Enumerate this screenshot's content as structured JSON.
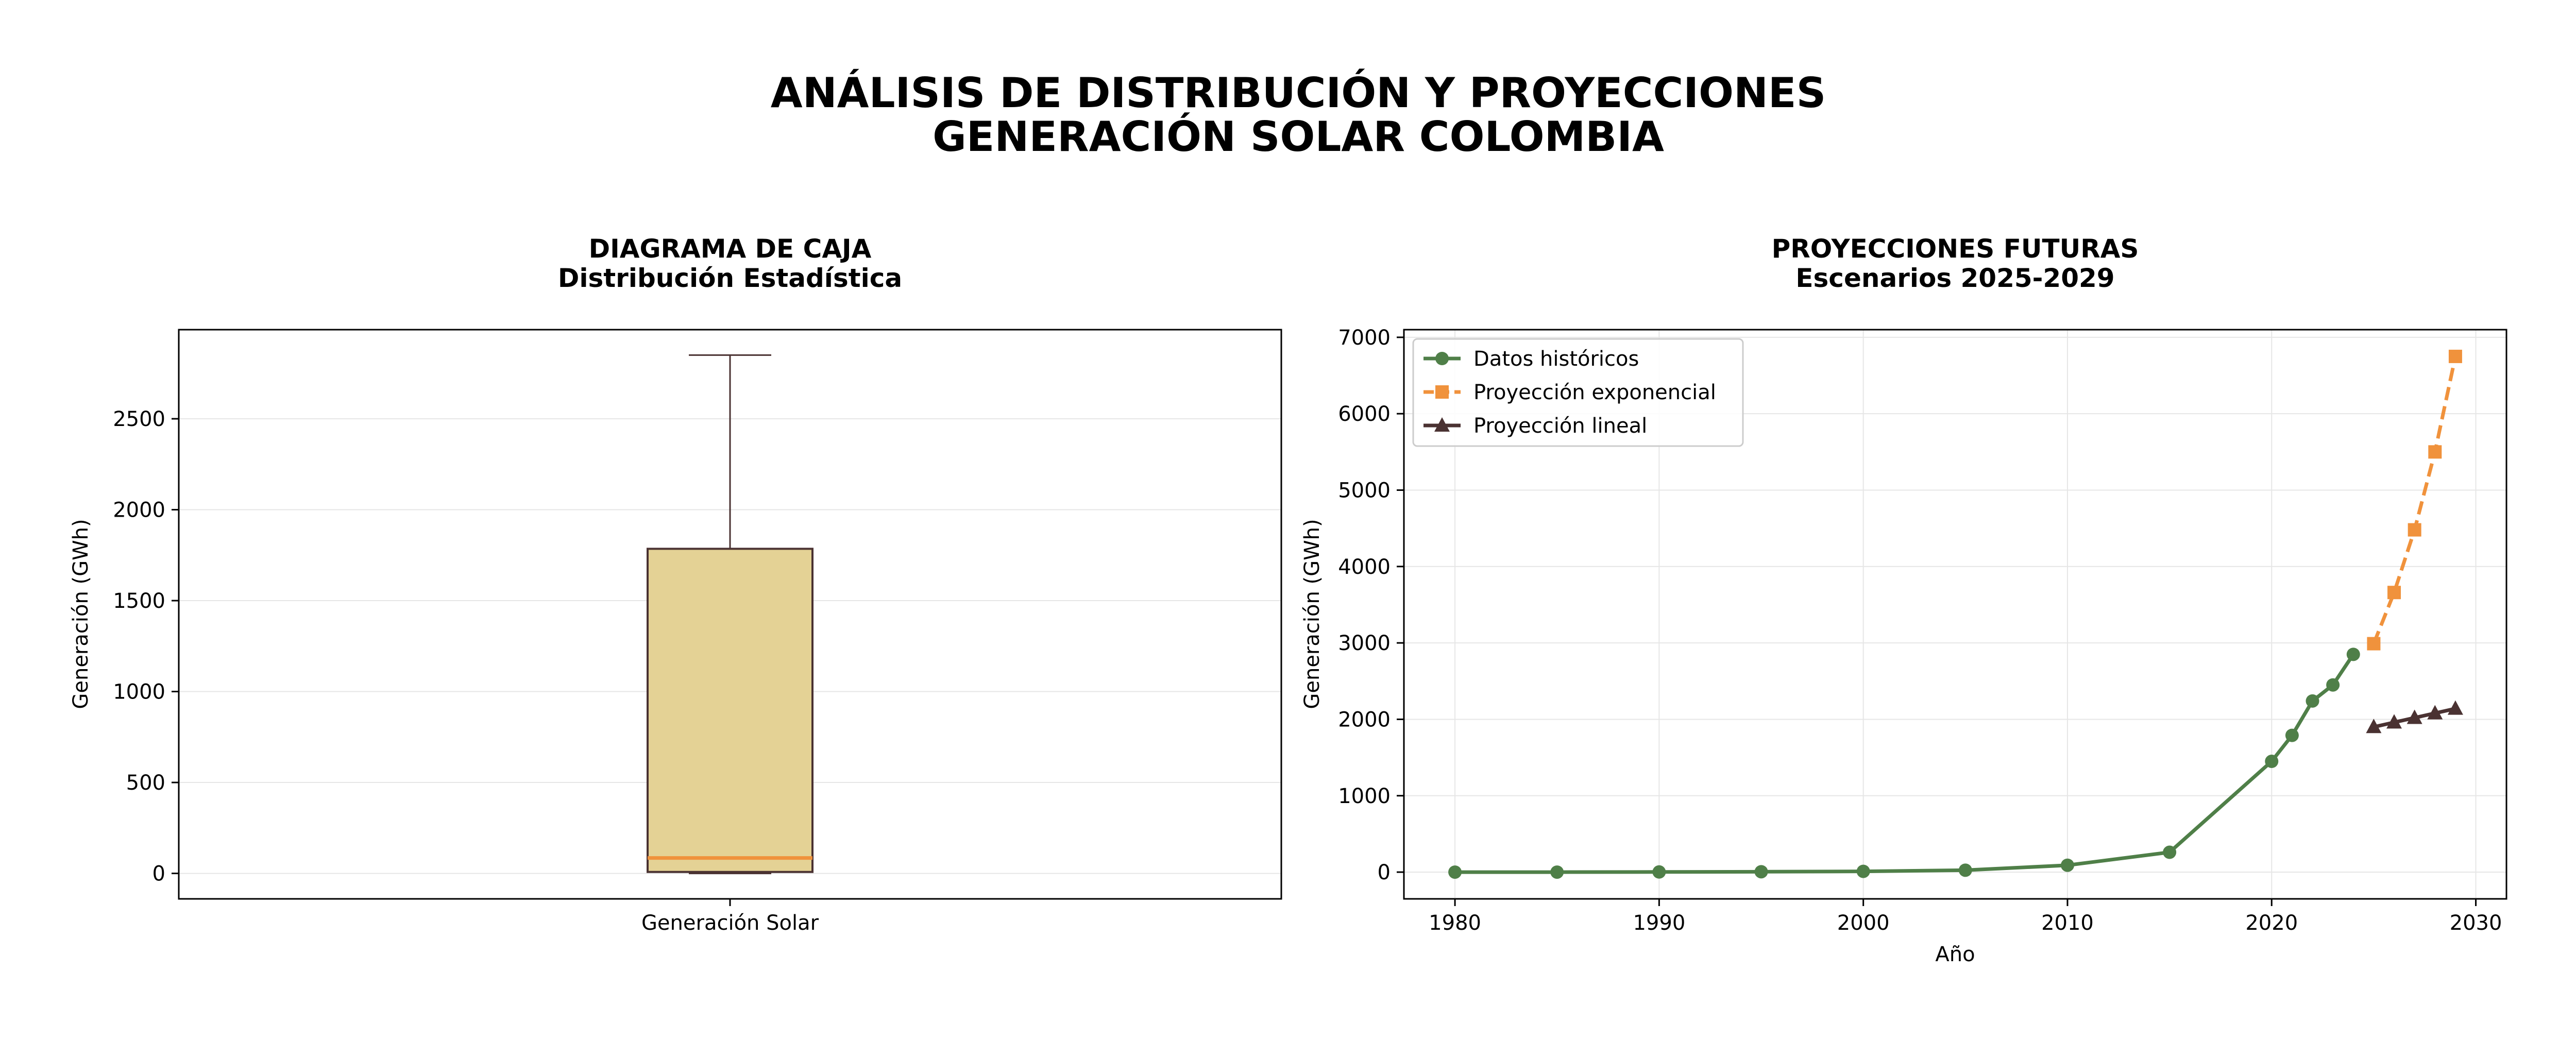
{
  "figure": {
    "title_line1": "ANÁLISIS DE DISTRIBUCIÓN Y PROYECCIONES",
    "title_line2": "GENERACIÓN SOLAR COLOMBIA"
  },
  "chart_data": [
    {
      "type": "box",
      "title_line1": "DIAGRAMA DE CAJA",
      "title_line2": "Distribución Estadística",
      "xlabel": "",
      "ylabel": "Generación (GWh)",
      "categories": [
        "Generación Solar"
      ],
      "box": {
        "whisker_low": 0,
        "q1": 8,
        "median": 85,
        "q3": 1785,
        "whisker_high": 2850
      },
      "ylim": [
        -140,
        2990
      ],
      "yticks": [
        0,
        500,
        1000,
        1500,
        2000,
        2500
      ],
      "grid": true,
      "colors": {
        "box_fill": "#e4d295",
        "box_edge": "#4a3232",
        "median": "#f0923c",
        "whisker": "#4a3232"
      }
    },
    {
      "type": "line",
      "title_line1": "PROYECCIONES FUTURAS",
      "title_line2": "Escenarios 2025-2029",
      "xlabel": "Año",
      "ylabel": "Generación (GWh)",
      "xlim": [
        1977.5,
        2031.5
      ],
      "ylim": [
        -350,
        7100
      ],
      "xticks": [
        1980,
        1990,
        2000,
        2010,
        2020,
        2030
      ],
      "yticks": [
        0,
        1000,
        2000,
        3000,
        4000,
        5000,
        6000,
        7000
      ],
      "grid": true,
      "legend_position": "upper-left",
      "series": [
        {
          "name": "Datos históricos",
          "color": "#4f7f48",
          "marker": "circle",
          "dash": "solid",
          "x": [
            1980,
            1985,
            1990,
            1995,
            2000,
            2005,
            2010,
            2015,
            2020,
            2021,
            2022,
            2023,
            2024
          ],
          "y": [
            0,
            0,
            2,
            5,
            10,
            25,
            90,
            260,
            1450,
            1790,
            2240,
            2450,
            2850
          ]
        },
        {
          "name": "Proyección exponencial",
          "color": "#f0923c",
          "marker": "square",
          "dash": "dashed",
          "x": [
            2025,
            2026,
            2027,
            2028,
            2029
          ],
          "y": [
            2990,
            3660,
            4480,
            5500,
            6750
          ]
        },
        {
          "name": "Proyección lineal",
          "color": "#4a3232",
          "marker": "triangle",
          "dash": "solid",
          "x": [
            2025,
            2026,
            2027,
            2028,
            2029
          ],
          "y": [
            1900,
            1960,
            2020,
            2080,
            2140
          ]
        }
      ]
    }
  ]
}
